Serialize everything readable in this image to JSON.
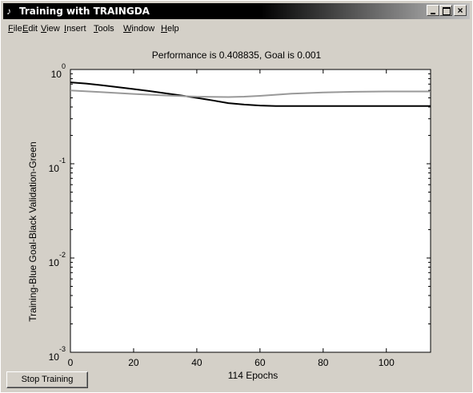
{
  "window": {
    "title": "Training with TRAINGDA",
    "icon": "matlab-figure-icon",
    "controls": [
      "minimize",
      "maximize",
      "close"
    ]
  },
  "menu": [
    {
      "label": "File",
      "mnemonic": "F"
    },
    {
      "label": "Edit",
      "mnemonic": "E"
    },
    {
      "label": "View",
      "mnemonic": "V"
    },
    {
      "label": "Insert",
      "mnemonic": "I"
    },
    {
      "label": "Tools",
      "mnemonic": "T"
    },
    {
      "label": "Window",
      "mnemonic": "W"
    },
    {
      "label": "Help",
      "mnemonic": "H"
    }
  ],
  "plot": {
    "title": "Performance is 0.408835, Goal is 0.001",
    "ylabel": "Training-Blue  Goal-Black  Validation-Green",
    "xlabel": "114 Epochs"
  },
  "controls": {
    "stop_label": "Stop Training"
  },
  "chart_data": {
    "type": "line",
    "title": "Performance is 0.408835, Goal is 0.001",
    "xlabel": "114 Epochs",
    "ylabel": "Training-Blue  Goal-Black  Validation-Green",
    "xlim": [
      0,
      114
    ],
    "ylim": [
      0.001,
      1
    ],
    "yscale": "log",
    "xticks": [
      "0",
      "20",
      "40",
      "60",
      "80",
      "100"
    ],
    "yticks": [
      {
        "base": "10",
        "exp": "0"
      },
      {
        "base": "10",
        "exp": "-1"
      },
      {
        "base": "10",
        "exp": "-2"
      },
      {
        "base": "10",
        "exp": "-3"
      }
    ],
    "grid": false,
    "series": [
      {
        "name": "Training",
        "color": "#000000",
        "x": [
          0,
          5,
          10,
          15,
          20,
          25,
          30,
          35,
          40,
          45,
          50,
          55,
          60,
          65,
          70,
          80,
          90,
          100,
          114
        ],
        "y": [
          0.73,
          0.71,
          0.68,
          0.65,
          0.62,
          0.59,
          0.56,
          0.53,
          0.5,
          0.47,
          0.44,
          0.425,
          0.415,
          0.41,
          0.409,
          0.409,
          0.409,
          0.409,
          0.409
        ]
      },
      {
        "name": "Validation",
        "color": "#999999",
        "x": [
          0,
          10,
          20,
          30,
          40,
          50,
          55,
          60,
          65,
          70,
          80,
          90,
          100,
          114
        ],
        "y": [
          0.6,
          0.575,
          0.55,
          0.53,
          0.515,
          0.51,
          0.515,
          0.525,
          0.54,
          0.555,
          0.57,
          0.58,
          0.585,
          0.585
        ]
      }
    ]
  }
}
